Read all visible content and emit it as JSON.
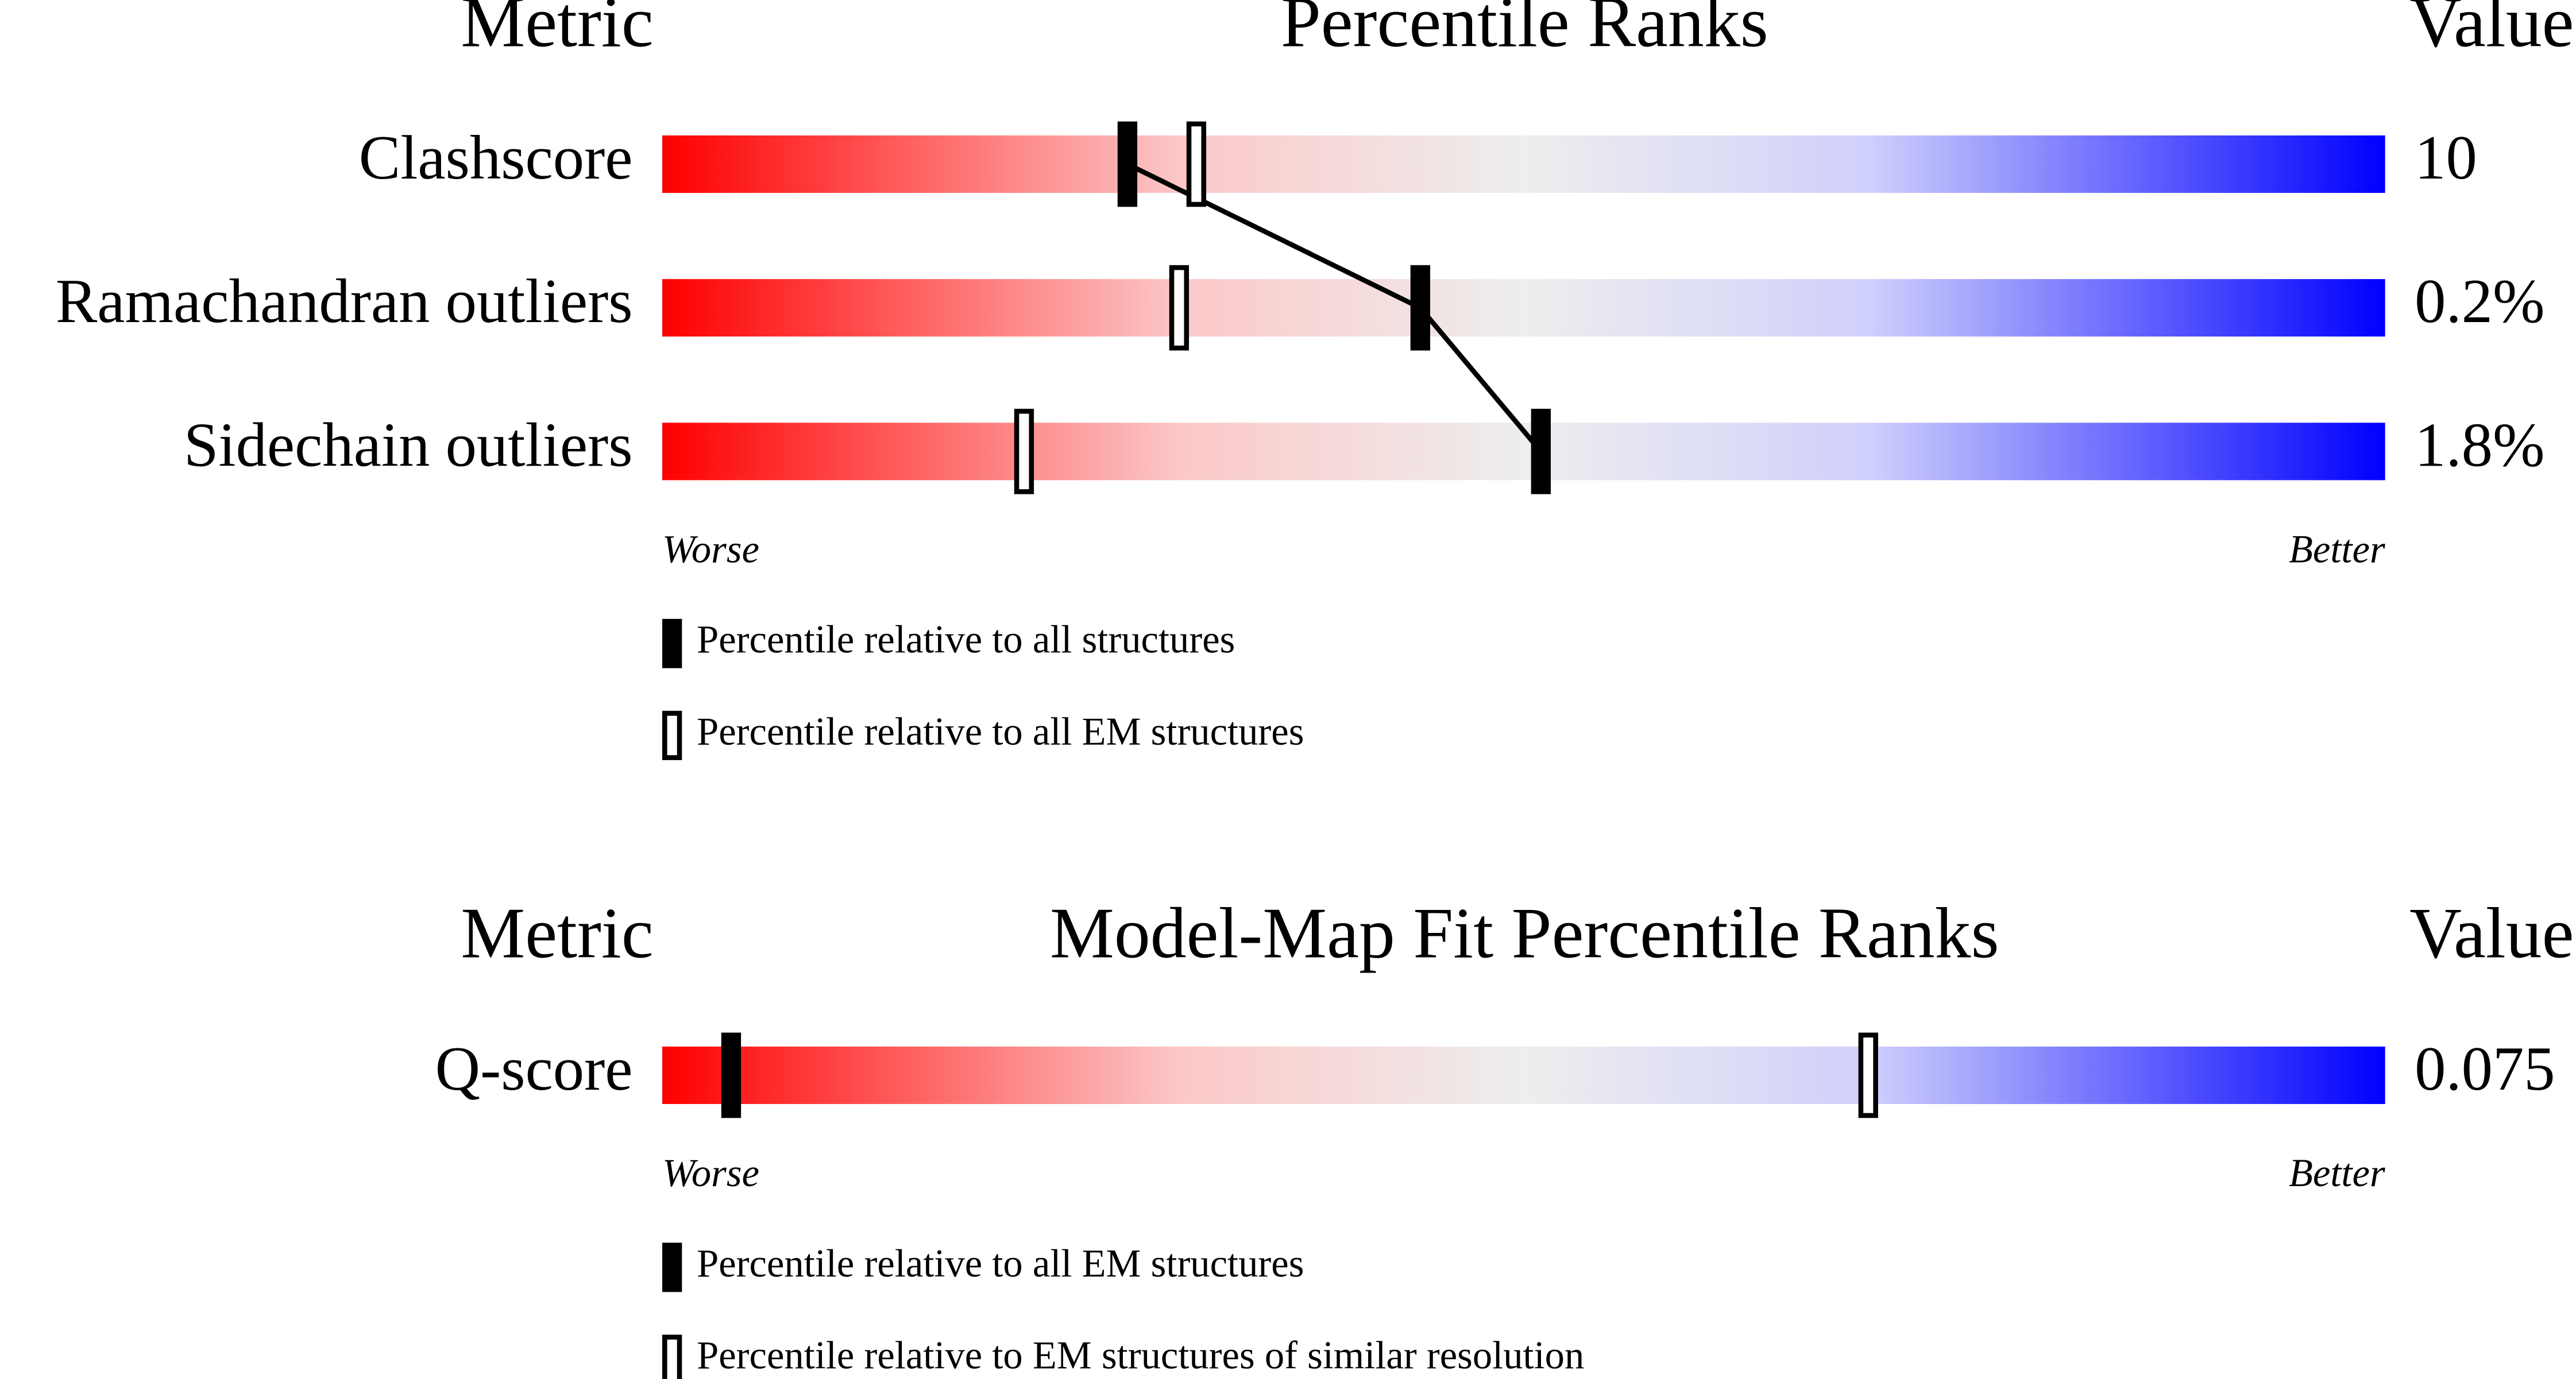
{
  "chart_data": [
    {
      "type": "percentile-slider",
      "title": "Percentile Ranks",
      "metric_header": "Metric",
      "value_header": "Value",
      "categories": [
        "Clashscore",
        "Ramachandran outliers",
        "Sidechain outliers"
      ],
      "metric_values": [
        "10",
        "0.2%",
        "1.8%"
      ],
      "xlim": [
        0,
        100
      ],
      "low_label": "Worse",
      "high_label": "Better",
      "series": [
        {
          "name": "Percentile relative to all structures",
          "style": "filled",
          "color": "#000000",
          "values": [
            27,
            44,
            51
          ]
        },
        {
          "name": "Percentile relative to all EM structures",
          "style": "open",
          "color": "#000000",
          "values": [
            31,
            30,
            21
          ]
        }
      ]
    },
    {
      "type": "percentile-slider",
      "title": "Model-Map Fit Percentile Ranks",
      "metric_header": "Metric",
      "value_header": "Value",
      "categories": [
        "Q-score"
      ],
      "metric_values": [
        "0.075"
      ],
      "xlim": [
        0,
        100
      ],
      "low_label": "Worse",
      "high_label": "Better",
      "series": [
        {
          "name": "Percentile relative to all EM structures",
          "style": "filled",
          "color": "#000000",
          "values": [
            4
          ]
        },
        {
          "name": "Percentile relative to EM structures of similar resolution",
          "style": "open",
          "color": "#000000",
          "values": [
            70
          ]
        }
      ]
    }
  ]
}
